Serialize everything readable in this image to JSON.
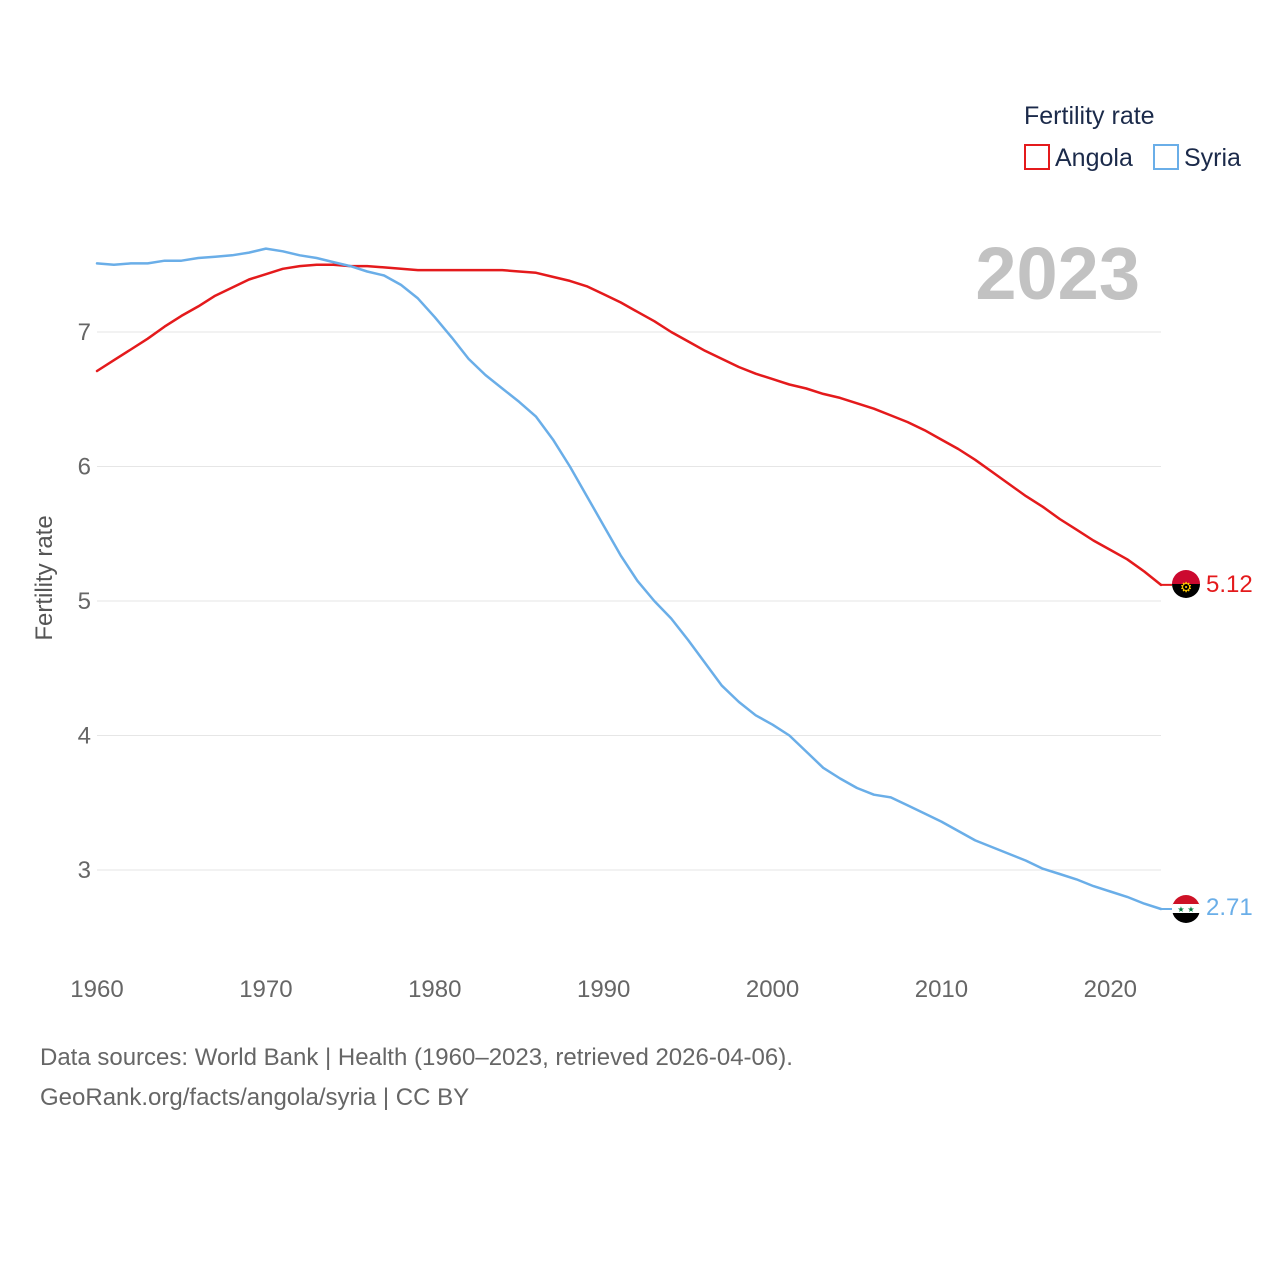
{
  "chart_data": {
    "type": "line",
    "ylabel": "Fertility rate",
    "xlabel": "",
    "legend_title": "Fertility rate",
    "legend_position": "top-right",
    "year_label": "2023",
    "xlim": [
      1960,
      2023
    ],
    "ylim": [
      2.5,
      7.7
    ],
    "x_ticks": [
      1960,
      1970,
      1980,
      1990,
      2000,
      2010,
      2020
    ],
    "y_ticks": [
      3,
      4,
      5,
      6,
      7
    ],
    "grid": true,
    "x": [
      1960,
      1961,
      1962,
      1963,
      1964,
      1965,
      1966,
      1967,
      1968,
      1969,
      1970,
      1971,
      1972,
      1973,
      1974,
      1975,
      1976,
      1977,
      1978,
      1979,
      1980,
      1981,
      1982,
      1983,
      1984,
      1985,
      1986,
      1987,
      1988,
      1989,
      1990,
      1991,
      1992,
      1993,
      1994,
      1995,
      1996,
      1997,
      1998,
      1999,
      2000,
      2001,
      2002,
      2003,
      2004,
      2005,
      2006,
      2007,
      2008,
      2009,
      2010,
      2011,
      2012,
      2013,
      2014,
      2015,
      2016,
      2017,
      2018,
      2019,
      2020,
      2021,
      2022,
      2023
    ],
    "series": [
      {
        "name": "Angola",
        "color": "#e41a1c",
        "end_label": "5.12",
        "flag": "angola-flag-icon",
        "values": [
          6.71,
          6.79,
          6.87,
          6.95,
          7.04,
          7.12,
          7.19,
          7.27,
          7.33,
          7.39,
          7.43,
          7.47,
          7.49,
          7.5,
          7.5,
          7.49,
          7.49,
          7.48,
          7.47,
          7.46,
          7.46,
          7.46,
          7.46,
          7.46,
          7.46,
          7.45,
          7.44,
          7.41,
          7.38,
          7.34,
          7.28,
          7.22,
          7.15,
          7.08,
          7.0,
          6.93,
          6.86,
          6.8,
          6.74,
          6.69,
          6.65,
          6.61,
          6.58,
          6.54,
          6.51,
          6.47,
          6.43,
          6.38,
          6.33,
          6.27,
          6.2,
          6.13,
          6.05,
          5.96,
          5.87,
          5.78,
          5.7,
          5.61,
          5.53,
          5.45,
          5.38,
          5.31,
          5.22,
          5.12
        ]
      },
      {
        "name": "Syria",
        "color": "#6aaee8",
        "end_label": "2.71",
        "flag": "syria-flag-icon",
        "values": [
          7.51,
          7.5,
          7.51,
          7.51,
          7.53,
          7.53,
          7.55,
          7.56,
          7.57,
          7.59,
          7.62,
          7.6,
          7.57,
          7.55,
          7.52,
          7.49,
          7.45,
          7.42,
          7.35,
          7.25,
          7.11,
          6.96,
          6.8,
          6.68,
          6.58,
          6.48,
          6.37,
          6.2,
          6.0,
          5.78,
          5.56,
          5.34,
          5.15,
          5.0,
          4.87,
          4.71,
          4.54,
          4.37,
          4.25,
          4.15,
          4.08,
          4.0,
          3.88,
          3.76,
          3.68,
          3.61,
          3.56,
          3.54,
          3.48,
          3.42,
          3.36,
          3.29,
          3.22,
          3.17,
          3.12,
          3.07,
          3.01,
          2.97,
          2.93,
          2.88,
          2.84,
          2.8,
          2.75,
          2.71
        ]
      }
    ]
  },
  "footer": {
    "line1": "Data sources: World Bank | Health (1960–2023, retrieved 2026-04-06).",
    "line2": "GeoRank.org/facts/angola/syria | CC BY"
  }
}
